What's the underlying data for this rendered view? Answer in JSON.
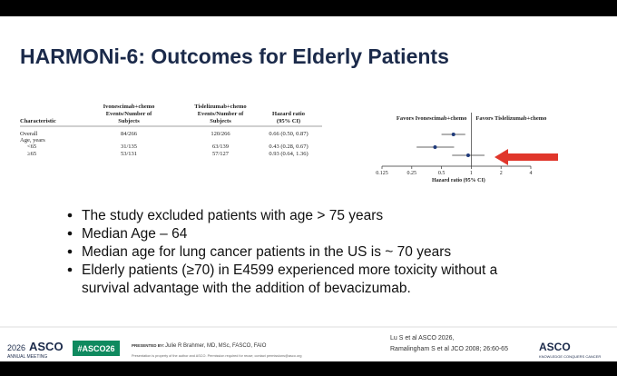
{
  "header": {
    "title": "HARMONi-6: Outcomes for Elderly Patients"
  },
  "table": {
    "headers": [
      [
        "Characteristic"
      ],
      [
        "Ivonescimab+chemo",
        "Events/Number of",
        "Subjects"
      ],
      [
        "Tislelizumab+chemo",
        "Events/Number of",
        "Subjects"
      ],
      [
        "Hazard ratio",
        "(95% CI)"
      ]
    ],
    "rows": [
      [
        "Overall",
        "84/266",
        "120/266",
        "0.66 (0.50, 0.87)"
      ],
      [
        "Age, years",
        null,
        null,
        null
      ],
      [
        "<65",
        "31/135",
        "63/139",
        "0.43 (0.28, 0.67)"
      ],
      [
        "≥65",
        "53/131",
        "57/127",
        "0.93 (0.64, 1.36)"
      ]
    ]
  },
  "forest": {
    "left_label": "Favors Ivonescimab+chemo",
    "right_label": "Favors Tislelizumab+chemo",
    "xlabel": "Hazard ratio (95% CI)",
    "log_scale": true,
    "xlim": [
      0.125,
      4
    ],
    "xticks": [
      0.125,
      0.25,
      0.5,
      1,
      2,
      4
    ],
    "color": "#1f3a7a",
    "points": [
      {
        "hr": 0.66,
        "low": 0.5,
        "high": 0.87
      },
      {
        "hr": 0.43,
        "low": 0.28,
        "high": 0.67
      },
      {
        "hr": 0.93,
        "low": 0.64,
        "high": 1.36
      }
    ]
  },
  "bullets": [
    [
      "The study excluded patients with age > 75 years"
    ],
    [
      "Median Age – 64"
    ],
    [
      "Median age for lung cancer patients in the US is ~ 70 years"
    ],
    [
      "Elderly patients (≥70) in E4599 experienced more toxicity without a",
      "survival advantage with the addition of bevacizumab."
    ]
  ],
  "footer": {
    "meeting_year": "2026",
    "meeting_name": "ASCO",
    "meeting_sub": "ANNUAL MEETING",
    "hashtag": "#ASCO26",
    "presented_by": "PRESENTED BY:",
    "presenter": "Julie R Brahmer, MD, MSc, FASCO, FAIO",
    "disclaimer": "Presentation is property of the author and ASCO. Permission required for reuse; contact permissions@asco.org",
    "citations": [
      "Lu S et al  ASCO 2026,",
      "Ramalingham S et al JCO 2008; 26:60-65"
    ],
    "logo": "ASCO",
    "logo_sub": "KNOWLEDGE CONQUERS CANCER"
  }
}
